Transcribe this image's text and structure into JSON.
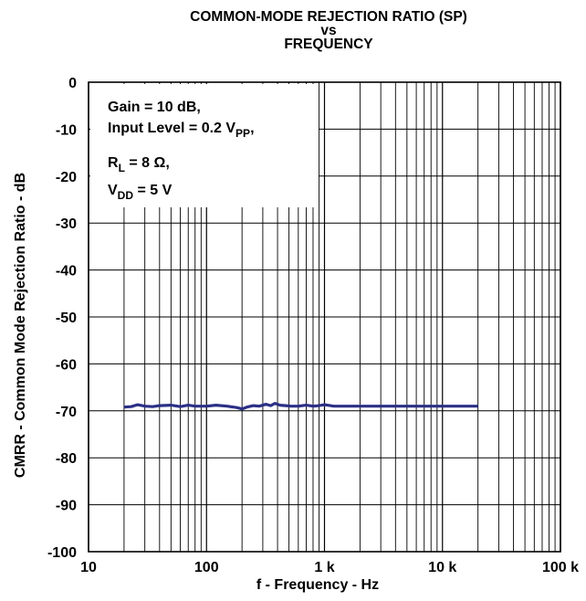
{
  "title_lines": [
    "COMMON-MODE REJECTION RATIO (SP)",
    "vs",
    "FREQUENCY"
  ],
  "colors": {
    "series": "#2b2f86",
    "grid": "#000000",
    "background": "#ffffff"
  },
  "chart_data": {
    "type": "line",
    "title": "COMMON-MODE REJECTION RATIO (SP) vs FREQUENCY",
    "xlabel": "f - Frequency - Hz",
    "ylabel": "CMRR - Common Mode Rejection Ratio - dB",
    "xscale": "log",
    "xlim": [
      10,
      100000
    ],
    "ylim": [
      -100,
      0
    ],
    "grid": true,
    "x_ticks": [
      {
        "value": 10,
        "label": "10"
      },
      {
        "value": 100,
        "label": "100"
      },
      {
        "value": 1000,
        "label": "1 k"
      },
      {
        "value": 10000,
        "label": "10 k"
      },
      {
        "value": 100000,
        "label": "100 k"
      }
    ],
    "y_ticks": [
      {
        "value": 0,
        "label": "0"
      },
      {
        "value": -10,
        "label": "-10"
      },
      {
        "value": -20,
        "label": "-20"
      },
      {
        "value": -30,
        "label": "-30"
      },
      {
        "value": -40,
        "label": "-40"
      },
      {
        "value": -50,
        "label": "-50"
      },
      {
        "value": -60,
        "label": "-60"
      },
      {
        "value": -70,
        "label": "-70"
      },
      {
        "value": -80,
        "label": "-80"
      },
      {
        "value": -90,
        "label": "-90"
      },
      {
        "value": -100,
        "label": "-100"
      }
    ],
    "annotation": {
      "gain": "Gain = 10 dB,",
      "input_prefix": "Input Level = 0.2 V",
      "input_sub": "PP",
      "input_suffix": ",",
      "rl_main": "R",
      "rl_sub": "L",
      "rl_suffix": " = 8 Ω,",
      "vdd_main": "V",
      "vdd_sub": "DD",
      "vdd_suffix": " = 5 V"
    },
    "series": [
      {
        "x": [
          20,
          23,
          26,
          30,
          35,
          40,
          50,
          60,
          70,
          80,
          100,
          120,
          150,
          180,
          200,
          220,
          250,
          280,
          320,
          350,
          380,
          420,
          470,
          520,
          600,
          700,
          800,
          900,
          1000,
          1200,
          1500,
          2000,
          3000,
          5000,
          10000,
          20000
        ],
        "y": [
          -69.2,
          -69.1,
          -68.7,
          -69.0,
          -69.1,
          -68.9,
          -68.8,
          -69.1,
          -68.8,
          -69.0,
          -69.0,
          -68.8,
          -69.0,
          -69.3,
          -69.6,
          -69.2,
          -68.9,
          -69.0,
          -68.6,
          -68.9,
          -68.4,
          -68.8,
          -68.9,
          -69.0,
          -69.0,
          -68.8,
          -69.0,
          -68.9,
          -68.7,
          -69.0,
          -69.0,
          -69.0,
          -69.0,
          -69.0,
          -69.0,
          -69.0
        ]
      }
    ]
  }
}
